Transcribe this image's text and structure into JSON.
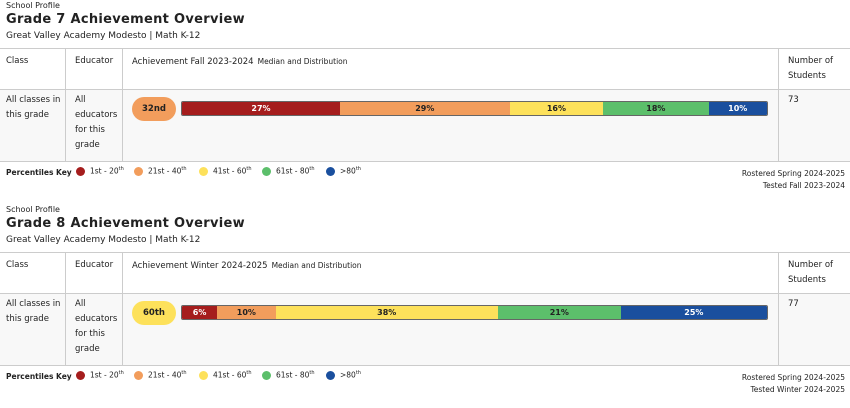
{
  "key_title": "Percentiles Key",
  "key": [
    {
      "text": "1st - 20",
      "sup": "th",
      "color": "#a51d1d"
    },
    {
      "text": "21st - 40",
      "sup": "th",
      "color": "#f29d5c"
    },
    {
      "text": "41st - 60",
      "sup": "th",
      "color": "#fde15b"
    },
    {
      "text": "61st - 80",
      "sup": "th",
      "color": "#5cbf6b"
    },
    {
      "text": ">80",
      "sup": "th",
      "color": "#1a4f9e"
    }
  ],
  "sections": [
    {
      "label": "School Profile",
      "title": "Grade 7 Achievement Overview",
      "subtitle": "Great Valley Academy Modesto | Math K-12",
      "headers": {
        "class": "Class",
        "educator": "Educator",
        "achievement": "Achievement Fall 2023-2024",
        "achievement_note": "Median and Distribution",
        "students": "Number of Students"
      },
      "row": {
        "class": "All classes in this grade",
        "educator": "All educators for this grade",
        "median": "32nd",
        "median_color": "#f29d5c",
        "segments": [
          {
            "value": 27,
            "label": "27%",
            "color": "#a51d1d"
          },
          {
            "value": 29,
            "label": "29%",
            "color": "#f29d5c"
          },
          {
            "value": 16,
            "label": "16%",
            "color": "#fde15b"
          },
          {
            "value": 18,
            "label": "18%",
            "color": "#5cbf6b"
          },
          {
            "value": 10,
            "label": "10%",
            "color": "#1a4f9e"
          }
        ],
        "students": "73"
      },
      "rostered": "Rostered Spring 2024-2025",
      "tested": "Tested Fall 2023-2024"
    },
    {
      "label": "School Profile",
      "title": "Grade 8 Achievement Overview",
      "subtitle": "Great Valley Academy Modesto | Math K-12",
      "headers": {
        "class": "Class",
        "educator": "Educator",
        "achievement": "Achievement Winter 2024-2025",
        "achievement_note": "Median and Distribution",
        "students": "Number of Students"
      },
      "row": {
        "class": "All classes in this grade",
        "educator": "All educators for this grade",
        "median": "60th",
        "median_color": "#fde15b",
        "segments": [
          {
            "value": 6,
            "label": "6%",
            "color": "#a51d1d"
          },
          {
            "value": 10,
            "label": "10%",
            "color": "#f29d5c"
          },
          {
            "value": 38,
            "label": "38%",
            "color": "#fde15b"
          },
          {
            "value": 21,
            "label": "21%",
            "color": "#5cbf6b"
          },
          {
            "value": 25,
            "label": "25%",
            "color": "#1a4f9e"
          }
        ],
        "students": "77"
      },
      "rostered": "Rostered Spring 2024-2025",
      "tested": "Tested Winter 2024-2025"
    }
  ]
}
